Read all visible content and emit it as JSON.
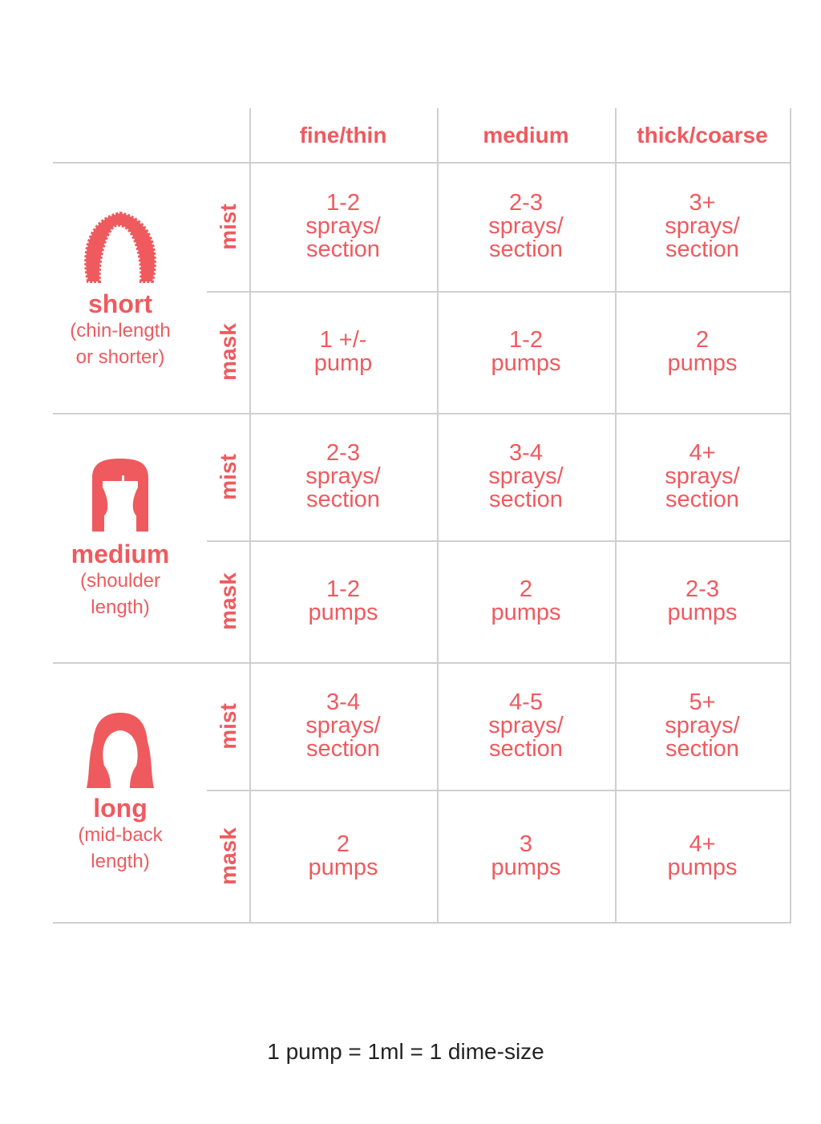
{
  "accent_color": "#ef5a5f",
  "columns": [
    "fine/thin",
    "medium",
    "thick/coarse"
  ],
  "groups": [
    {
      "name": "short",
      "desc": [
        "(chin-length",
        "or shorter)"
      ],
      "icon": "curly-short-hair-icon",
      "rows": [
        {
          "label": "mist",
          "cells": [
            [
              "1-2",
              "sprays/",
              "section"
            ],
            [
              "2-3",
              "sprays/",
              "section"
            ],
            [
              "3+",
              "sprays/",
              "section"
            ]
          ]
        },
        {
          "label": "mask",
          "cells": [
            [
              "1 +/-",
              "pump"
            ],
            [
              "1-2",
              "pumps"
            ],
            [
              "2",
              "pumps"
            ]
          ]
        }
      ]
    },
    {
      "name": "medium",
      "desc": [
        "(shoulder",
        "length)"
      ],
      "icon": "bob-hair-icon",
      "rows": [
        {
          "label": "mist",
          "cells": [
            [
              "2-3",
              "sprays/",
              "section"
            ],
            [
              "3-4",
              "sprays/",
              "section"
            ],
            [
              "4+",
              "sprays/",
              "section"
            ]
          ]
        },
        {
          "label": "mask",
          "cells": [
            [
              "1-2",
              "pumps"
            ],
            [
              "2",
              "pumps"
            ],
            [
              "2-3",
              "pumps"
            ]
          ]
        }
      ]
    },
    {
      "name": "long",
      "desc": [
        "(mid-back",
        "length)"
      ],
      "icon": "long-hair-icon",
      "rows": [
        {
          "label": "mist",
          "cells": [
            [
              "3-4",
              "sprays/",
              "section"
            ],
            [
              "4-5",
              "sprays/",
              "section"
            ],
            [
              "5+",
              "sprays/",
              "section"
            ]
          ]
        },
        {
          "label": "mask",
          "cells": [
            [
              "2",
              "pumps"
            ],
            [
              "3",
              "pumps"
            ],
            [
              "4+",
              "pumps"
            ]
          ]
        }
      ]
    }
  ],
  "footnote": "1 pump = 1ml = 1 dime-size"
}
